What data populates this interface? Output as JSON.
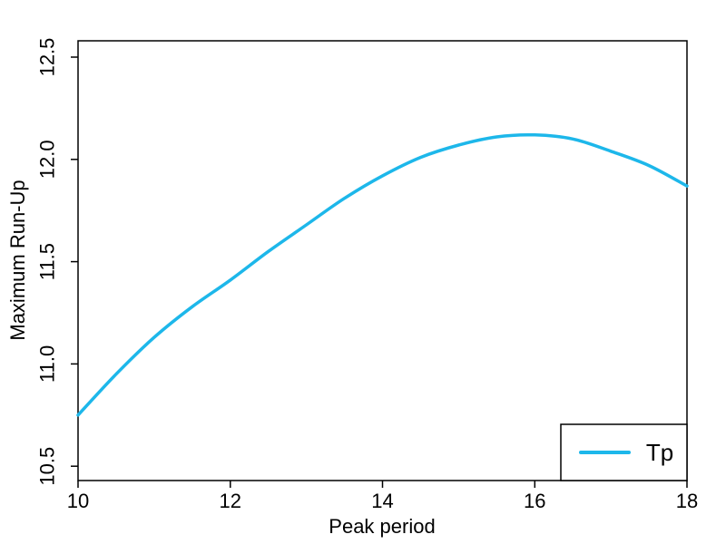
{
  "figure": {
    "background_color": "#ffffff",
    "frame_color": "#000000",
    "accent_color": "#1db7ea"
  },
  "chart_data": {
    "type": "line",
    "title": "",
    "xlabel": "Peak period",
    "ylabel": "Maximum Run-Up",
    "xlim": [
      10,
      18
    ],
    "ylim": [
      10.43,
      12.58
    ],
    "grid": false,
    "x_ticks": {
      "values": [
        10,
        12,
        14,
        16,
        18
      ],
      "labels": [
        "10",
        "12",
        "14",
        "16",
        "18"
      ]
    },
    "y_ticks": {
      "values": [
        10.5,
        11.0,
        11.5,
        12.0,
        12.5
      ],
      "labels": [
        "10.5",
        "11.0",
        "11.5",
        "12.0",
        "12.5"
      ]
    },
    "legend": {
      "position": "bottom-right",
      "entries": [
        {
          "label": "Tp",
          "color": "#1db7ea"
        }
      ]
    },
    "series": [
      {
        "name": "Tp",
        "color": "#1db7ea",
        "x": [
          10,
          10.5,
          11,
          11.5,
          12,
          12.5,
          13,
          13.5,
          14,
          14.5,
          15,
          15.5,
          16,
          16.5,
          17,
          17.5,
          18
        ],
        "y": [
          10.75,
          10.95,
          11.13,
          11.28,
          11.41,
          11.55,
          11.68,
          11.81,
          11.92,
          12.01,
          12.07,
          12.11,
          12.12,
          12.1,
          12.04,
          11.97,
          11.87
        ]
      }
    ]
  }
}
